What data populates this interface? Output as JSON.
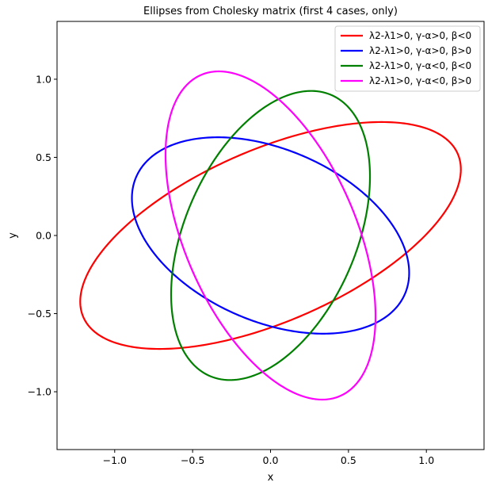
{
  "chart_data": {
    "type": "line",
    "title": "Ellipses from Cholesky matrix (first 4 cases, only)",
    "xlabel": "x",
    "ylabel": "y",
    "xlim": [
      -1.37,
      1.37
    ],
    "ylim": [
      -1.37,
      1.37
    ],
    "x_ticks": [
      -1.0,
      -0.5,
      0.0,
      0.5,
      1.0
    ],
    "y_ticks": [
      -1.0,
      -0.5,
      0.0,
      0.5,
      1.0
    ],
    "x_tick_labels": [
      "−1.0",
      "−0.5",
      "0.0",
      "0.5",
      "1.0"
    ],
    "y_tick_labels": [
      "−1.0",
      "−0.5",
      "0.0",
      "0.5",
      "1.0"
    ],
    "grid": false,
    "legend_position": "top-right",
    "series": [
      {
        "name": "λ2-λ1>0, γ-α>0, β<0",
        "color": "#ff0000",
        "semi_major": 1.31,
        "semi_minor": 0.55,
        "angle_deg": 23.5
      },
      {
        "name": "λ2-λ1>0, γ-α>0, β>0",
        "color": "#0000ff",
        "semi_major": 0.94,
        "semi_minor": 0.55,
        "angle_deg": -23.5
      },
      {
        "name": "λ2-λ1>0, γ-α<0, β<0",
        "color": "#008000",
        "semi_major": 0.98,
        "semi_minor": 0.55,
        "angle_deg": 66.5
      },
      {
        "name": "λ2-λ1>0, γ-α<0, β>0",
        "color": "#ff00ff",
        "semi_major": 1.12,
        "semi_minor": 0.55,
        "angle_deg": -66.5
      }
    ]
  }
}
